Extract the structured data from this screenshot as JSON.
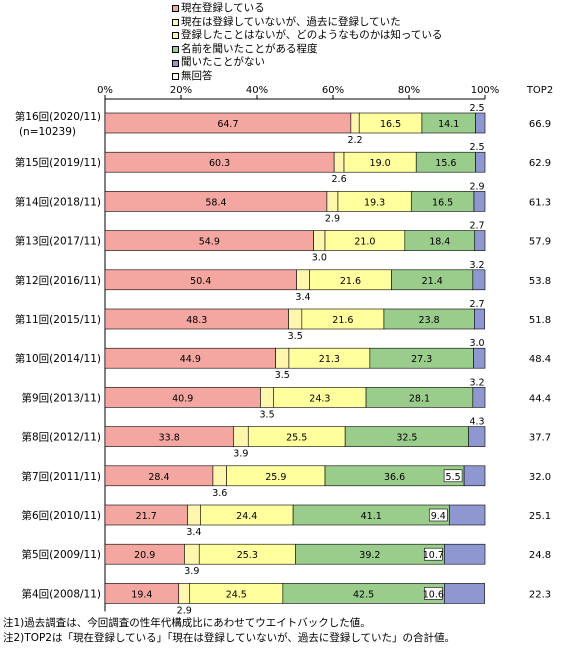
{
  "legend": [
    {
      "label": "現在登録している",
      "color": "#f4a6a0"
    },
    {
      "label": "現在は登録していないが、過去に登録していた",
      "color": "#fff6ae"
    },
    {
      "label": "登録したことはないが、どのようなものかは知っている",
      "color": "#ffff9e"
    },
    {
      "label": "名前を聞いたことがある程度",
      "color": "#9acc8c"
    },
    {
      "label": "聞いたことがない",
      "color": "#8e97cf"
    },
    {
      "label": "無回答",
      "color": "#ffffff"
    }
  ],
  "notes": [
    "注1)過去調査は、今回調査の性年代構成比にあわせてウエイトバックした値。",
    "注2)TOP2は「現在登録している」「現在は登録していないが、過去に登録していた」の合計値。"
  ],
  "chart_data": {
    "type": "bar",
    "orientation": "horizontal",
    "stacked": true,
    "percent": true,
    "xlim": [
      0,
      100
    ],
    "xticks": [
      "0%",
      "20%",
      "40%",
      "60%",
      "80%",
      "100%"
    ],
    "top2_header": "TOP2",
    "categories": [
      {
        "line1": "第16回(2020/11)",
        "line2": "(n=10239)"
      },
      {
        "line1": "第15回(2019/11)"
      },
      {
        "line1": "第14回(2018/11)"
      },
      {
        "line1": "第13回(2017/11)"
      },
      {
        "line1": "第12回(2016/11)"
      },
      {
        "line1": "第11回(2015/11)"
      },
      {
        "line1": "第10回(2014/11)"
      },
      {
        "line1": "第9回(2013/11)"
      },
      {
        "line1": "第8回(2012/11)"
      },
      {
        "line1": "第7回(2011/11)"
      },
      {
        "line1": "第6回(2010/11)"
      },
      {
        "line1": "第5回(2009/11)"
      },
      {
        "line1": "第4回(2008/11)"
      }
    ],
    "series": [
      {
        "name": "現在登録している",
        "values": [
          64.7,
          60.3,
          58.4,
          54.9,
          50.4,
          48.3,
          44.9,
          40.9,
          33.8,
          28.4,
          21.7,
          20.9,
          19.4
        ],
        "labels": [
          "64.7",
          "60.3",
          "58.4",
          "54.9",
          "50.4",
          "48.3",
          "44.9",
          "40.9",
          "33.8",
          "28.4",
          "21.7",
          "20.9",
          "19.4"
        ]
      },
      {
        "name": "現在は登録していないが、過去に登録していた",
        "values": [
          2.2,
          2.6,
          2.9,
          3.0,
          3.4,
          3.5,
          3.5,
          3.5,
          3.9,
          3.6,
          3.4,
          3.9,
          2.9
        ],
        "labels": [
          "2.2",
          "2.6",
          "2.9",
          "3.0",
          "3.4",
          "3.5",
          "3.5",
          "3.5",
          "3.9",
          "3.6",
          "3.4",
          "3.9",
          "2.9"
        ]
      },
      {
        "name": "登録したことはないが、どのようなものかは知っている",
        "values": [
          16.5,
          19.0,
          19.3,
          21.0,
          21.6,
          21.6,
          21.3,
          24.3,
          25.5,
          25.9,
          24.4,
          25.3,
          24.5
        ],
        "labels": [
          "16.5",
          "19.0",
          "19.3",
          "21.0",
          "21.6",
          "21.6",
          "21.3",
          "24.3",
          "25.5",
          "25.9",
          "24.4",
          "25.3",
          "24.5"
        ]
      },
      {
        "name": "名前を聞いたことがある程度",
        "values": [
          14.1,
          15.6,
          16.5,
          18.4,
          21.4,
          23.8,
          27.3,
          28.1,
          32.5,
          36.6,
          41.1,
          39.2,
          42.5
        ],
        "labels": [
          "14.1",
          "15.6",
          "16.5",
          "18.4",
          "21.4",
          "23.8",
          "27.3",
          "28.1",
          "32.5",
          "36.6",
          "41.1",
          "39.2",
          "42.5"
        ]
      },
      {
        "name": "聞いたことがない",
        "values": [
          2.5,
          2.5,
          2.9,
          2.7,
          3.2,
          2.7,
          3.0,
          3.2,
          4.3,
          5.5,
          9.4,
          10.7,
          10.6
        ],
        "labels": [
          "2.5",
          "2.5",
          "2.9",
          "2.7",
          "3.2",
          "2.7",
          "3.0",
          "3.2",
          "4.3",
          "5.5",
          "9.4",
          "10.7",
          "10.6"
        ]
      },
      {
        "name": "無回答",
        "values": [
          0,
          0,
          0,
          0,
          0,
          0,
          0,
          0,
          0,
          0,
          0,
          0,
          0
        ]
      }
    ],
    "top2": [
      "66.9",
      "62.9",
      "61.3",
      "57.9",
      "53.8",
      "51.8",
      "48.4",
      "44.4",
      "37.7",
      "32.0",
      "25.1",
      "24.8",
      "22.3"
    ]
  }
}
